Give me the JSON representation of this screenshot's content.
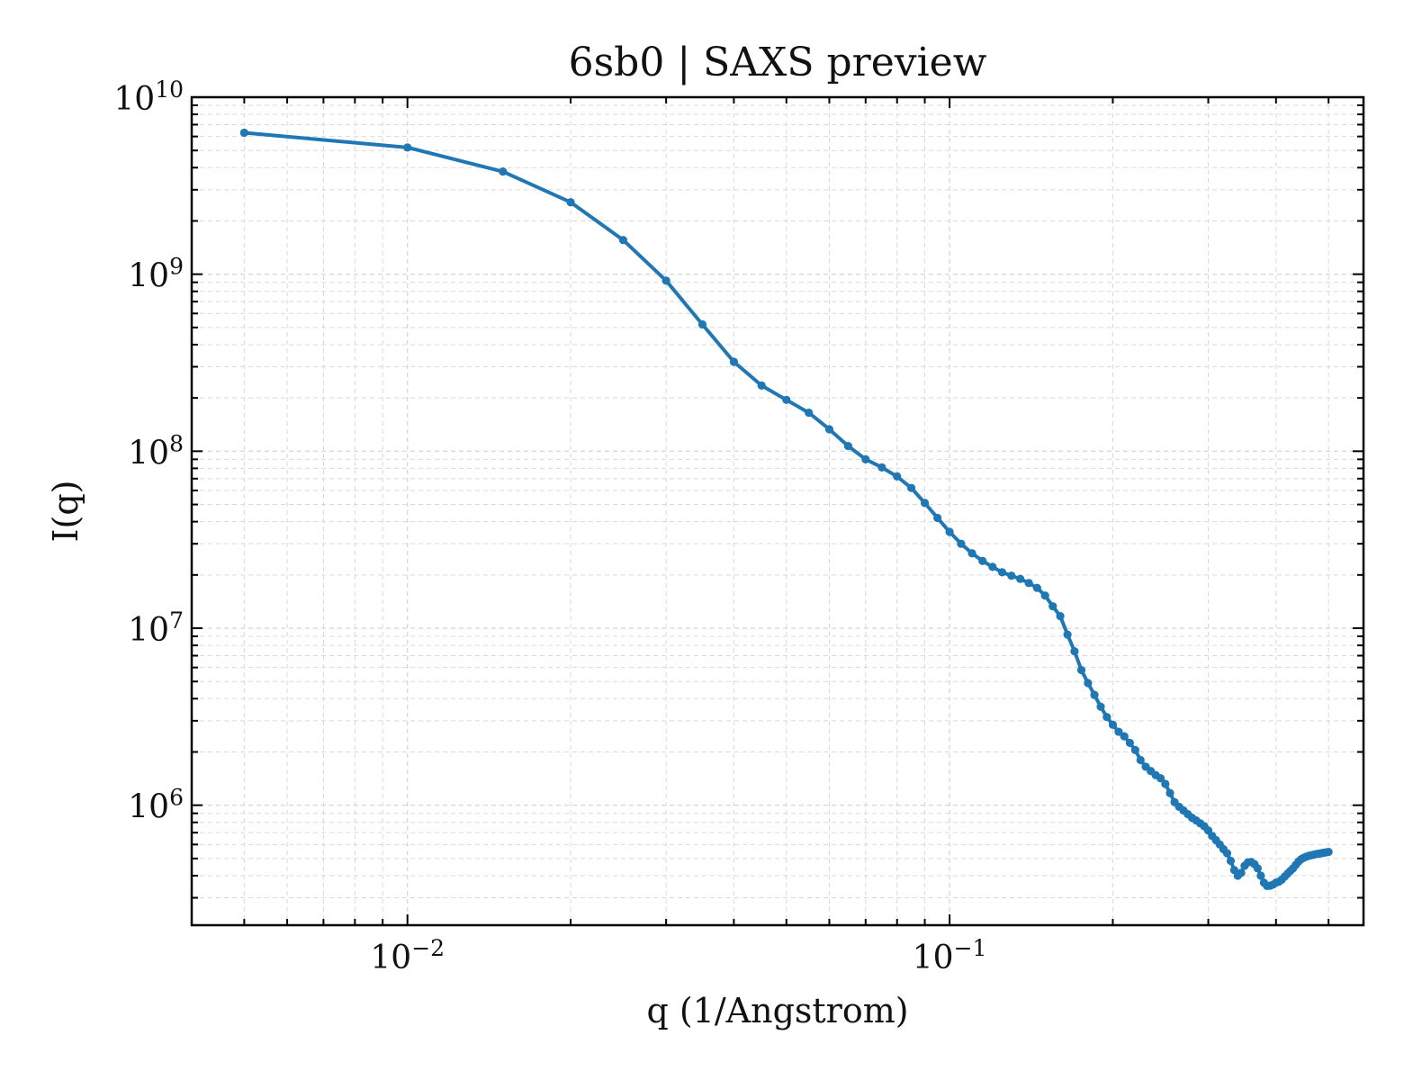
{
  "chart_data": {
    "type": "line",
    "title": "6sb0 | SAXS preview",
    "xlabel": "q (1/Angstrom)",
    "ylabel": "I(q)",
    "xscale": "log",
    "yscale": "log",
    "xlim": [
      0.004,
      0.58
    ],
    "ylim": [
      210000,
      10000000000
    ],
    "grid": "major and minor, dashed",
    "legend": "none",
    "colors": {
      "series": "#1f77b4",
      "grid": "#d9d9d9",
      "axes": "#000000"
    },
    "x_ticks": [
      {
        "base": "10",
        "exp": "−2",
        "value": 0.01
      },
      {
        "base": "10",
        "exp": "−1",
        "value": 0.1
      }
    ],
    "y_ticks": [
      {
        "base": "10",
        "exp": "6",
        "value": 1000000
      },
      {
        "base": "10",
        "exp": "7",
        "value": 10000000
      },
      {
        "base": "10",
        "exp": "8",
        "value": 100000000
      },
      {
        "base": "10",
        "exp": "9",
        "value": 1000000000
      },
      {
        "base": "10",
        "exp": "10",
        "value": 10000000000
      }
    ],
    "series": [
      {
        "x": [
          0.005,
          0.01,
          0.015,
          0.02,
          0.025,
          0.03,
          0.035,
          0.04,
          0.045,
          0.05,
          0.055,
          0.06,
          0.065,
          0.07,
          0.075,
          0.08,
          0.085,
          0.09,
          0.095,
          0.1,
          0.105,
          0.11,
          0.115,
          0.12,
          0.125,
          0.13,
          0.135,
          0.14,
          0.145,
          0.15,
          0.155,
          0.16,
          0.165,
          0.17,
          0.175,
          0.18,
          0.185,
          0.19,
          0.195,
          0.2,
          0.205,
          0.21,
          0.215,
          0.22,
          0.225,
          0.23,
          0.235,
          0.24,
          0.245,
          0.25,
          0.255,
          0.26,
          0.265,
          0.27,
          0.275,
          0.28,
          0.285,
          0.29,
          0.295,
          0.3,
          0.305,
          0.31,
          0.315,
          0.32,
          0.325,
          0.33,
          0.335,
          0.34,
          0.345,
          0.35,
          0.355,
          0.36,
          0.365,
          0.37,
          0.375,
          0.38,
          0.385,
          0.39,
          0.395,
          0.4,
          0.405,
          0.41,
          0.415,
          0.42,
          0.425,
          0.43,
          0.435,
          0.44,
          0.445,
          0.45,
          0.455,
          0.46,
          0.465,
          0.47,
          0.475,
          0.48,
          0.485,
          0.49,
          0.495,
          0.5
        ],
        "y": [
          6300000000,
          5200000000,
          3800000000,
          2550000000,
          1560000000,
          920000000,
          520000000,
          320000000,
          235000000,
          195000000,
          165000000,
          133000000,
          107000000,
          90000000,
          81000000,
          72000000,
          62000000,
          51000000,
          42000000,
          35000000,
          30000000,
          26500000,
          24000000,
          22200000,
          20700000,
          19800000,
          19000000,
          18000000,
          16900000,
          15300000,
          13300000,
          11700000,
          9200000,
          7400000,
          5800000,
          4900000,
          4200000,
          3600000,
          3150000,
          2850000,
          2600000,
          2450000,
          2250000,
          2050000,
          1800000,
          1650000,
          1560000,
          1480000,
          1420000,
          1320000,
          1170000,
          1040000,
          980000,
          935000,
          890000,
          850000,
          820000,
          790000,
          760000,
          720000,
          670000,
          635000,
          600000,
          565000,
          535000,
          485000,
          430000,
          400000,
          415000,
          455000,
          475000,
          478000,
          465000,
          440000,
          400000,
          365000,
          350000,
          351000,
          356000,
          365000,
          370000,
          380000,
          395000,
          410000,
          425000,
          440000,
          460000,
          480000,
          495000,
          505000,
          512000,
          518000,
          522000,
          526000,
          530000,
          533000,
          536000,
          539000,
          542000,
          545000
        ]
      }
    ]
  }
}
